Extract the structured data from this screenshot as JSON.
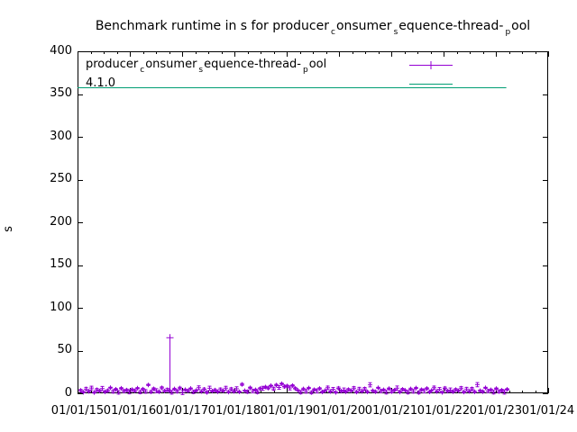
{
  "chart_data": {
    "type": "scatter-errorbars",
    "title_plain": "Benchmark runtime in s for producer_consumer_sequence-thread-_pool",
    "title_parts": [
      "Benchmark runtime in s for producer",
      "c",
      "onsumer",
      "s",
      "equence-thread-",
      "p",
      "ool"
    ],
    "ylabel": "s",
    "ylim": [
      0,
      400
    ],
    "yticks": [
      0,
      50,
      100,
      150,
      200,
      250,
      300,
      350,
      400
    ],
    "xticks": [
      "01/01/15",
      "01/01/16",
      "01/01/17",
      "01/01/18",
      "01/01/19",
      "01/01/20",
      "01/01/21",
      "01/01/22",
      "01/01/23",
      "01/01/24"
    ],
    "x_years": [
      2015,
      2024
    ],
    "x_minor_per_year": 4,
    "grid": false,
    "legend_position": "top-left-inside",
    "colors": {
      "runtime_series": "#9400d3",
      "version_line": "#009e73",
      "axis": "#000000",
      "background": "#ffffff"
    },
    "legend": {
      "entries": [
        {
          "label_plain": "producer_consumer_sequence-thread-_pool",
          "label_parts": [
            "producer",
            "c",
            "onsumer",
            "s",
            "equence-thread-",
            "p",
            "ool"
          ],
          "color": "#9400d3",
          "marker": "plus-line"
        },
        {
          "label": "4.1.0",
          "color": "#009e73",
          "marker": "line"
        }
      ]
    },
    "series": [
      {
        "name": "producer_consumer_sequence-thread-_pool",
        "color": "#9400d3",
        "style": "errorbars",
        "x_start": 2015.06,
        "x_step": 0.0512,
        "values": [
          3.4,
          1.2,
          5.1,
          2.3,
          6.2,
          0.9,
          4.2,
          2.8,
          5.6,
          1.6,
          3.1,
          6.6,
          2.1,
          4.7,
          1.1,
          5.9,
          2.5,
          3.8,
          1.8,
          4.4,
          2.9,
          6.0,
          1.4,
          4.9,
          2.2,
          9.8,
          1.7,
          5.3,
          3.0,
          1.9,
          6.4,
          2.6,
          4.1,
          3.2,
          1.2,
          5.1,
          2.3,
          6.2,
          0.9,
          4.2,
          2.8,
          5.6,
          1.6,
          3.1,
          6.6,
          2.1,
          4.7,
          1.1,
          5.9,
          2.5,
          3.8,
          1.8,
          4.4,
          2.9,
          6.0,
          1.4,
          4.9,
          2.2,
          5.3,
          1.7,
          10.4,
          3.0,
          1.9,
          6.4,
          2.6,
          4.1,
          1.3,
          5.5,
          5.8,
          7.4,
          6.1,
          8.9,
          5.2,
          9.6,
          6.8,
          11.2,
          7.9,
          8.5,
          6.3,
          9.1,
          5.7,
          3.4,
          1.2,
          5.1,
          2.3,
          6.2,
          0.9,
          4.2,
          2.8,
          5.6,
          1.6,
          3.1,
          6.6,
          2.1,
          4.7,
          1.1,
          5.9,
          2.5,
          3.8,
          1.8,
          4.4,
          2.9,
          6.0,
          1.4,
          4.9,
          2.2,
          5.3,
          1.7,
          9.9,
          3.0,
          1.9,
          6.4,
          2.6,
          4.1,
          1.3,
          5.5,
          2.0,
          3.6,
          6.1,
          1.5,
          4.6,
          3.4,
          1.2,
          5.1,
          2.3,
          6.2,
          0.9,
          4.2,
          2.8,
          5.6,
          1.6,
          3.1,
          6.6,
          2.1,
          4.7,
          1.1,
          5.9,
          2.5,
          3.8,
          1.8,
          4.4,
          2.9,
          6.0,
          1.4,
          4.9,
          2.2,
          5.3,
          1.7,
          10.1,
          3.0,
          1.9,
          6.4,
          2.6,
          4.1,
          1.3,
          5.5,
          2.0,
          3.6,
          1.5,
          4.6
        ],
        "err_pattern": [
          1.2,
          0.7,
          1.8,
          1.0,
          2.1,
          0.8,
          1.5,
          1.1,
          2.4,
          0.9
        ],
        "outlier": {
          "x": 2016.75,
          "y": 65,
          "bar_low": 2.5
        }
      },
      {
        "name": "4.1.0",
        "color": "#009e73",
        "style": "hline",
        "value": 358,
        "x_start": 2015.0,
        "x_end": 2023.2
      }
    ]
  }
}
